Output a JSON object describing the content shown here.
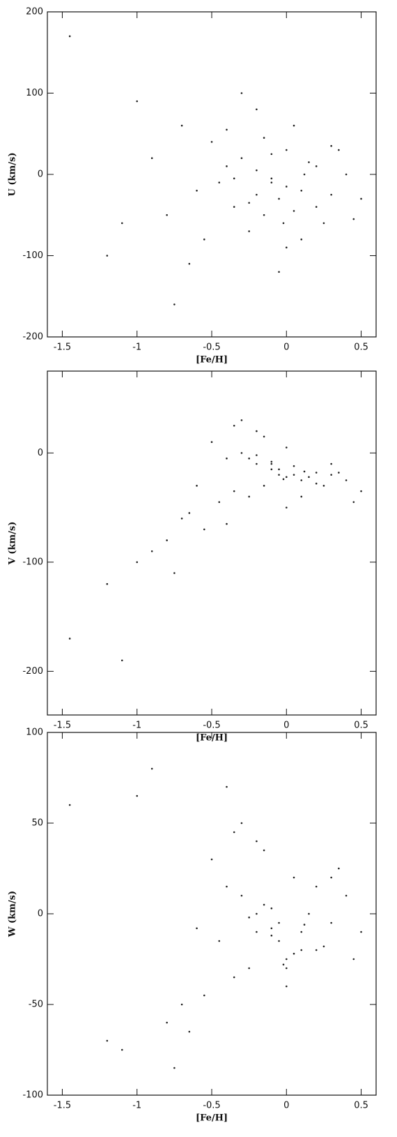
{
  "chart_data": [
    {
      "type": "scatter",
      "xlabel": "[Fe/H]",
      "ylabel": "U (km/s)",
      "color": "#222222",
      "xlim": [
        -1.6,
        0.6
      ],
      "xticks": [
        -1.5,
        -1,
        -0.5,
        0,
        0.5
      ],
      "ylim": [
        -200,
        200
      ],
      "yticks": [
        -200,
        -100,
        0,
        100,
        200
      ],
      "x": [
        -0.1,
        -0.2,
        -0.05,
        0.1,
        -0.3,
        0.2,
        -0.15,
        0.0,
        -0.4,
        0.3,
        -0.25,
        0.05,
        -0.1,
        -0.35,
        0.15,
        -0.5,
        0.25,
        -0.2,
        0.0,
        -0.6,
        0.4,
        -0.7,
        -0.05,
        0.1,
        -0.3,
        -0.45,
        0.35,
        -0.8,
        -1.0,
        -1.2,
        -1.45,
        0.5,
        -0.15,
        0.0,
        -0.25,
        0.2,
        -0.55,
        -0.9,
        -1.1,
        0.45,
        -0.65,
        -0.35,
        0.05,
        -0.1,
        -0.2,
        0.12,
        -0.02,
        -0.4,
        0.3,
        -0.75
      ],
      "values": [
        -10,
        5,
        -30,
        -20,
        20,
        -40,
        -50,
        30,
        10,
        -25,
        -70,
        60,
        -5,
        -40,
        15,
        40,
        -60,
        80,
        -90,
        -20,
        0,
        60,
        -120,
        -80,
        100,
        -10,
        30,
        -50,
        90,
        -100,
        170,
        -30,
        45,
        -15,
        -35,
        10,
        -80,
        20,
        -60,
        -55,
        -110,
        -5,
        -45,
        25,
        -25,
        0,
        -60,
        55,
        35,
        -160
      ]
    },
    {
      "type": "scatter",
      "xlabel": "[Fe/H]",
      "ylabel": "V (km/s)",
      "color": "#222222",
      "xlim": [
        -1.6,
        0.6
      ],
      "xticks": [
        -1.5,
        -1,
        -0.5,
        0,
        0.5
      ],
      "ylim": [
        -240,
        75
      ],
      "yticks": [
        -200,
        -100,
        0
      ],
      "x": [
        -0.1,
        -0.2,
        -0.05,
        0.1,
        -0.3,
        0.2,
        -0.15,
        0.0,
        -0.4,
        0.3,
        -0.25,
        0.05,
        -0.1,
        -0.35,
        0.15,
        -0.5,
        0.25,
        -0.2,
        0.0,
        -0.6,
        0.4,
        -0.7,
        -0.05,
        0.1,
        -0.3,
        -0.45,
        0.35,
        -0.8,
        -1.0,
        -1.2,
        -1.45,
        0.5,
        -0.15,
        0.0,
        -0.25,
        0.2,
        -0.55,
        -0.9,
        -1.1,
        0.45,
        -0.65,
        -0.35,
        0.05,
        -0.1,
        -0.2,
        0.12,
        -0.02,
        -0.4,
        0.3,
        -0.75
      ],
      "values": [
        -15,
        -10,
        -20,
        -25,
        0,
        -18,
        -30,
        5,
        -5,
        -20,
        -40,
        -12,
        -8,
        -35,
        -22,
        10,
        -30,
        20,
        -50,
        -30,
        -25,
        -60,
        -15,
        -40,
        30,
        -45,
        -18,
        -80,
        -100,
        -120,
        -170,
        -35,
        15,
        -22,
        -5,
        -28,
        -70,
        -90,
        -190,
        -45,
        -55,
        25,
        -20,
        -10,
        -2,
        -17,
        -24,
        -65,
        -10,
        -110
      ]
    },
    {
      "type": "scatter",
      "xlabel": "[Fe/H]",
      "ylabel": "W (km/s)",
      "color": "#222222",
      "xlim": [
        -1.6,
        0.6
      ],
      "xticks": [
        -1.5,
        -1,
        -0.5,
        0,
        0.5
      ],
      "ylim": [
        -100,
        100
      ],
      "yticks": [
        -100,
        -50,
        0,
        50,
        100
      ],
      "x": [
        -0.1,
        -0.2,
        -0.05,
        0.1,
        -0.3,
        0.2,
        -0.15,
        0.0,
        -0.4,
        0.3,
        -0.25,
        0.05,
        -0.1,
        -0.35,
        0.15,
        -0.5,
        0.25,
        -0.2,
        0.0,
        -0.6,
        0.4,
        -0.7,
        -0.05,
        0.1,
        -0.3,
        -0.45,
        0.35,
        -0.8,
        -1.0,
        -1.2,
        -1.45,
        0.5,
        -0.15,
        0.0,
        -0.25,
        0.2,
        -0.55,
        -0.9,
        -1.1,
        0.45,
        -0.65,
        -0.35,
        0.05,
        -0.1,
        -0.2,
        0.12,
        -0.02,
        -0.4,
        0.3,
        -0.75
      ],
      "values": [
        -8,
        0,
        -15,
        -10,
        10,
        -20,
        5,
        -25,
        15,
        -5,
        -30,
        20,
        -12,
        -35,
        0,
        30,
        -18,
        40,
        -40,
        -8,
        10,
        -50,
        -5,
        -20,
        50,
        -15,
        25,
        -60,
        65,
        -70,
        60,
        -10,
        35,
        -30,
        -2,
        15,
        -45,
        80,
        -75,
        -25,
        -65,
        45,
        -22,
        3,
        -10,
        -6,
        -28,
        70,
        20,
        -85
      ]
    }
  ]
}
